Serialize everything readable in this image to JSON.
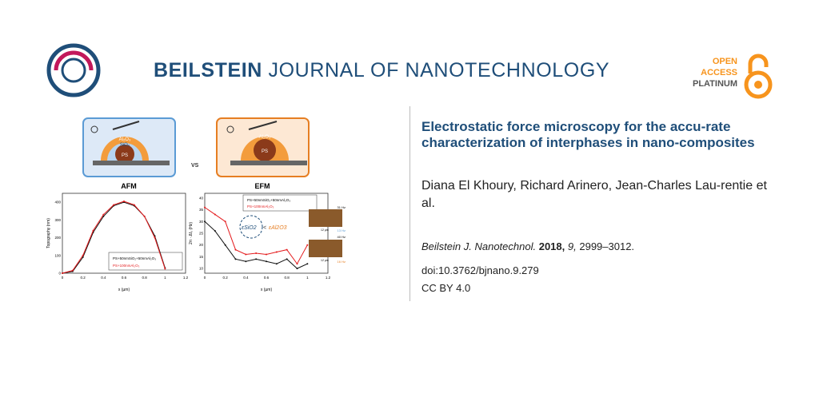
{
  "journal": {
    "name_bold": "BEILSTEIN",
    "name_rest": "JOURNAL OF NANOTECHNOLOGY"
  },
  "open_access": {
    "line1": "OPEN",
    "line2": "ACCESS",
    "line3": "PLATINUM"
  },
  "article": {
    "title": "Electrostatic force microscopy for the accu-rate characterization of interphases in nano-composites",
    "authors": "Diana El Khoury, Richard Arinero, Jean-Charles Lau-rentie et al.",
    "journal_abbrev": "Beilstein J. Nanotechnol.",
    "year": "2018,",
    "volume": "9,",
    "pages": "2999–3012.",
    "doi": "doi:10.3762/bjnano.9.279",
    "license": "CC BY 4.0"
  },
  "graphic": {
    "vs": "VS",
    "afm_label": "AFM",
    "efm_label": "EFM",
    "schematic_core": "PS",
    "schematic_shell_outer": "Al₂O₃",
    "schematic_shell_inner": "SiO₂",
    "afm_ylabel": "Topography (nm)",
    "afm_xlabel": "x (µm)",
    "efm_ylabel": "2π · Δf₀ (Hz)",
    "efm_xlabel": "x (µm)",
    "legend_a": "PS+50nmSiO₂+50nmAl₂O₃",
    "legend_b": "PS+100nmAl₂O₃",
    "eps_sio2": "εSiO2",
    "eps_al2o3": "εAl2O3",
    "eps_lt": "<",
    "map1_top": "31 Hz",
    "map1_bottom": "13 Hz",
    "map2_top": "40 Hz",
    "map2_bottom": "16 Hz",
    "scalebar": "12 µm",
    "colors": {
      "series_a": "#111111",
      "series_b": "#e41a1c",
      "afm_frame": "#5b9bd5",
      "efm_frame": "#e67e22"
    },
    "afm_ticks_x": [
      "0",
      "0.2",
      "0.4",
      "0.6",
      "0.8",
      "1",
      "1.2"
    ],
    "afm_ticks_y": [
      "0",
      "100",
      "200",
      "300",
      "400"
    ],
    "efm_ticks_x": [
      "0",
      "0.2",
      "0.4",
      "0.6",
      "0.8",
      "1",
      "1.2"
    ],
    "efm_ticks_y": [
      "10",
      "15",
      "20",
      "25",
      "30",
      "35",
      "40"
    ],
    "afm_series_a": [
      [
        0,
        0
      ],
      [
        0.1,
        10
      ],
      [
        0.2,
        90
      ],
      [
        0.3,
        230
      ],
      [
        0.4,
        320
      ],
      [
        0.5,
        380
      ],
      [
        0.6,
        400
      ],
      [
        0.7,
        380
      ],
      [
        0.8,
        320
      ],
      [
        0.9,
        210
      ],
      [
        1.0,
        30
      ]
    ],
    "afm_series_b": [
      [
        0,
        0
      ],
      [
        0.1,
        15
      ],
      [
        0.2,
        100
      ],
      [
        0.3,
        240
      ],
      [
        0.4,
        330
      ],
      [
        0.5,
        385
      ],
      [
        0.6,
        405
      ],
      [
        0.7,
        385
      ],
      [
        0.8,
        320
      ],
      [
        0.9,
        200
      ],
      [
        1.0,
        25
      ]
    ],
    "efm_series_a": [
      [
        0,
        30
      ],
      [
        0.1,
        26
      ],
      [
        0.2,
        20
      ],
      [
        0.3,
        14
      ],
      [
        0.4,
        13
      ],
      [
        0.5,
        14
      ],
      [
        0.6,
        13
      ],
      [
        0.7,
        12
      ],
      [
        0.8,
        14
      ],
      [
        0.9,
        10
      ],
      [
        1.0,
        12
      ]
    ],
    "efm_series_b": [
      [
        0,
        36
      ],
      [
        0.1,
        33
      ],
      [
        0.2,
        30
      ],
      [
        0.3,
        18
      ],
      [
        0.4,
        16
      ],
      [
        0.5,
        16.5
      ],
      [
        0.6,
        16
      ],
      [
        0.7,
        17
      ],
      [
        0.8,
        18
      ],
      [
        0.9,
        12
      ],
      [
        1.0,
        20
      ]
    ]
  }
}
